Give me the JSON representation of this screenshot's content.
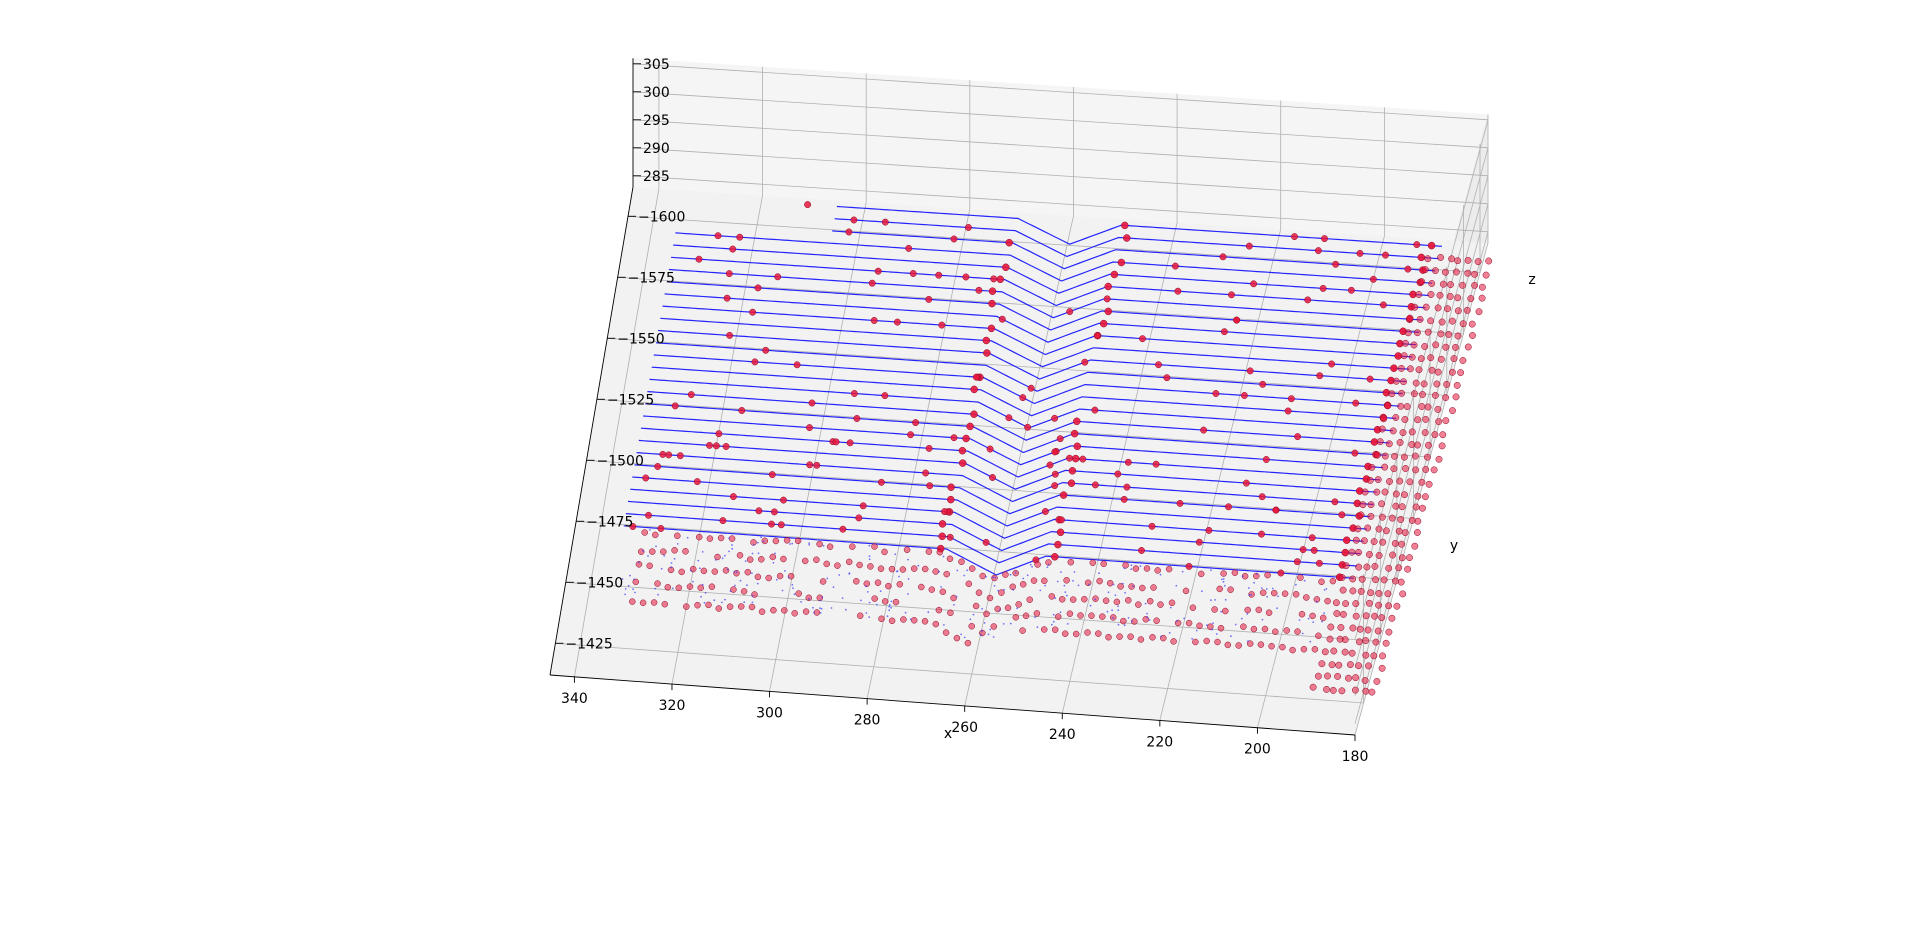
{
  "chart_data": {
    "type": "scatter",
    "projection": "3d",
    "title": "",
    "xlabel": "x",
    "ylabel": "y",
    "zlabel": "z",
    "xlim": [
      180,
      345
    ],
    "ylim": [
      -1612,
      -1412
    ],
    "zlim": [
      283,
      306
    ],
    "xticks": [
      340,
      320,
      300,
      280,
      260,
      240,
      220,
      200,
      180
    ],
    "xtick_labels": [
      "340",
      "320",
      "300",
      "280",
      "260",
      "240",
      "220",
      "200",
      "180"
    ],
    "yticks": [
      -1600,
      -1575,
      -1550,
      -1525,
      -1500,
      -1475,
      -1450,
      -1425
    ],
    "ytick_labels": [
      "−1600",
      "−1575",
      "−1550",
      "−1525",
      "−1500",
      "−1475",
      "−1450",
      "−1425"
    ],
    "zticks": [
      285,
      290,
      295,
      300,
      305
    ],
    "ztick_labels": [
      "285",
      "290",
      "295",
      "300",
      "305"
    ],
    "grid": true,
    "legend": "none",
    "pane_color": "#f2f2f2",
    "grid_color": "#b0b0b0",
    "series": [
      {
        "marker": "line",
        "color": "#0000ff",
        "description_of_data": "scan lines of a point cloud at constant y, every 5 units, on a flat surface near z 285 with a V-shaped trough between x 250 and 270 (depth about 4)",
        "y_values": [
          -1605,
          -1600,
          -1595,
          -1590,
          -1585,
          -1580,
          -1575,
          -1570,
          -1565,
          -1560,
          -1555,
          -1550,
          -1545,
          -1540,
          -1535,
          -1530,
          -1525,
          -1520,
          -1515,
          -1510,
          -1505,
          -1500,
          -1495,
          -1490,
          -1485,
          -1480,
          -1475,
          -1470
        ],
        "x_range": [
          188,
          335
        ],
        "trough_x_range": [
          250,
          270
        ],
        "surface_z": 285,
        "trough_depth": 4
      },
      {
        "marker": "o",
        "color": "#e8173c",
        "description_of_data": "detected points along the scan lines and a dense grid of points on the right side (x 180 to 190) and along the front rows"
      }
    ]
  }
}
